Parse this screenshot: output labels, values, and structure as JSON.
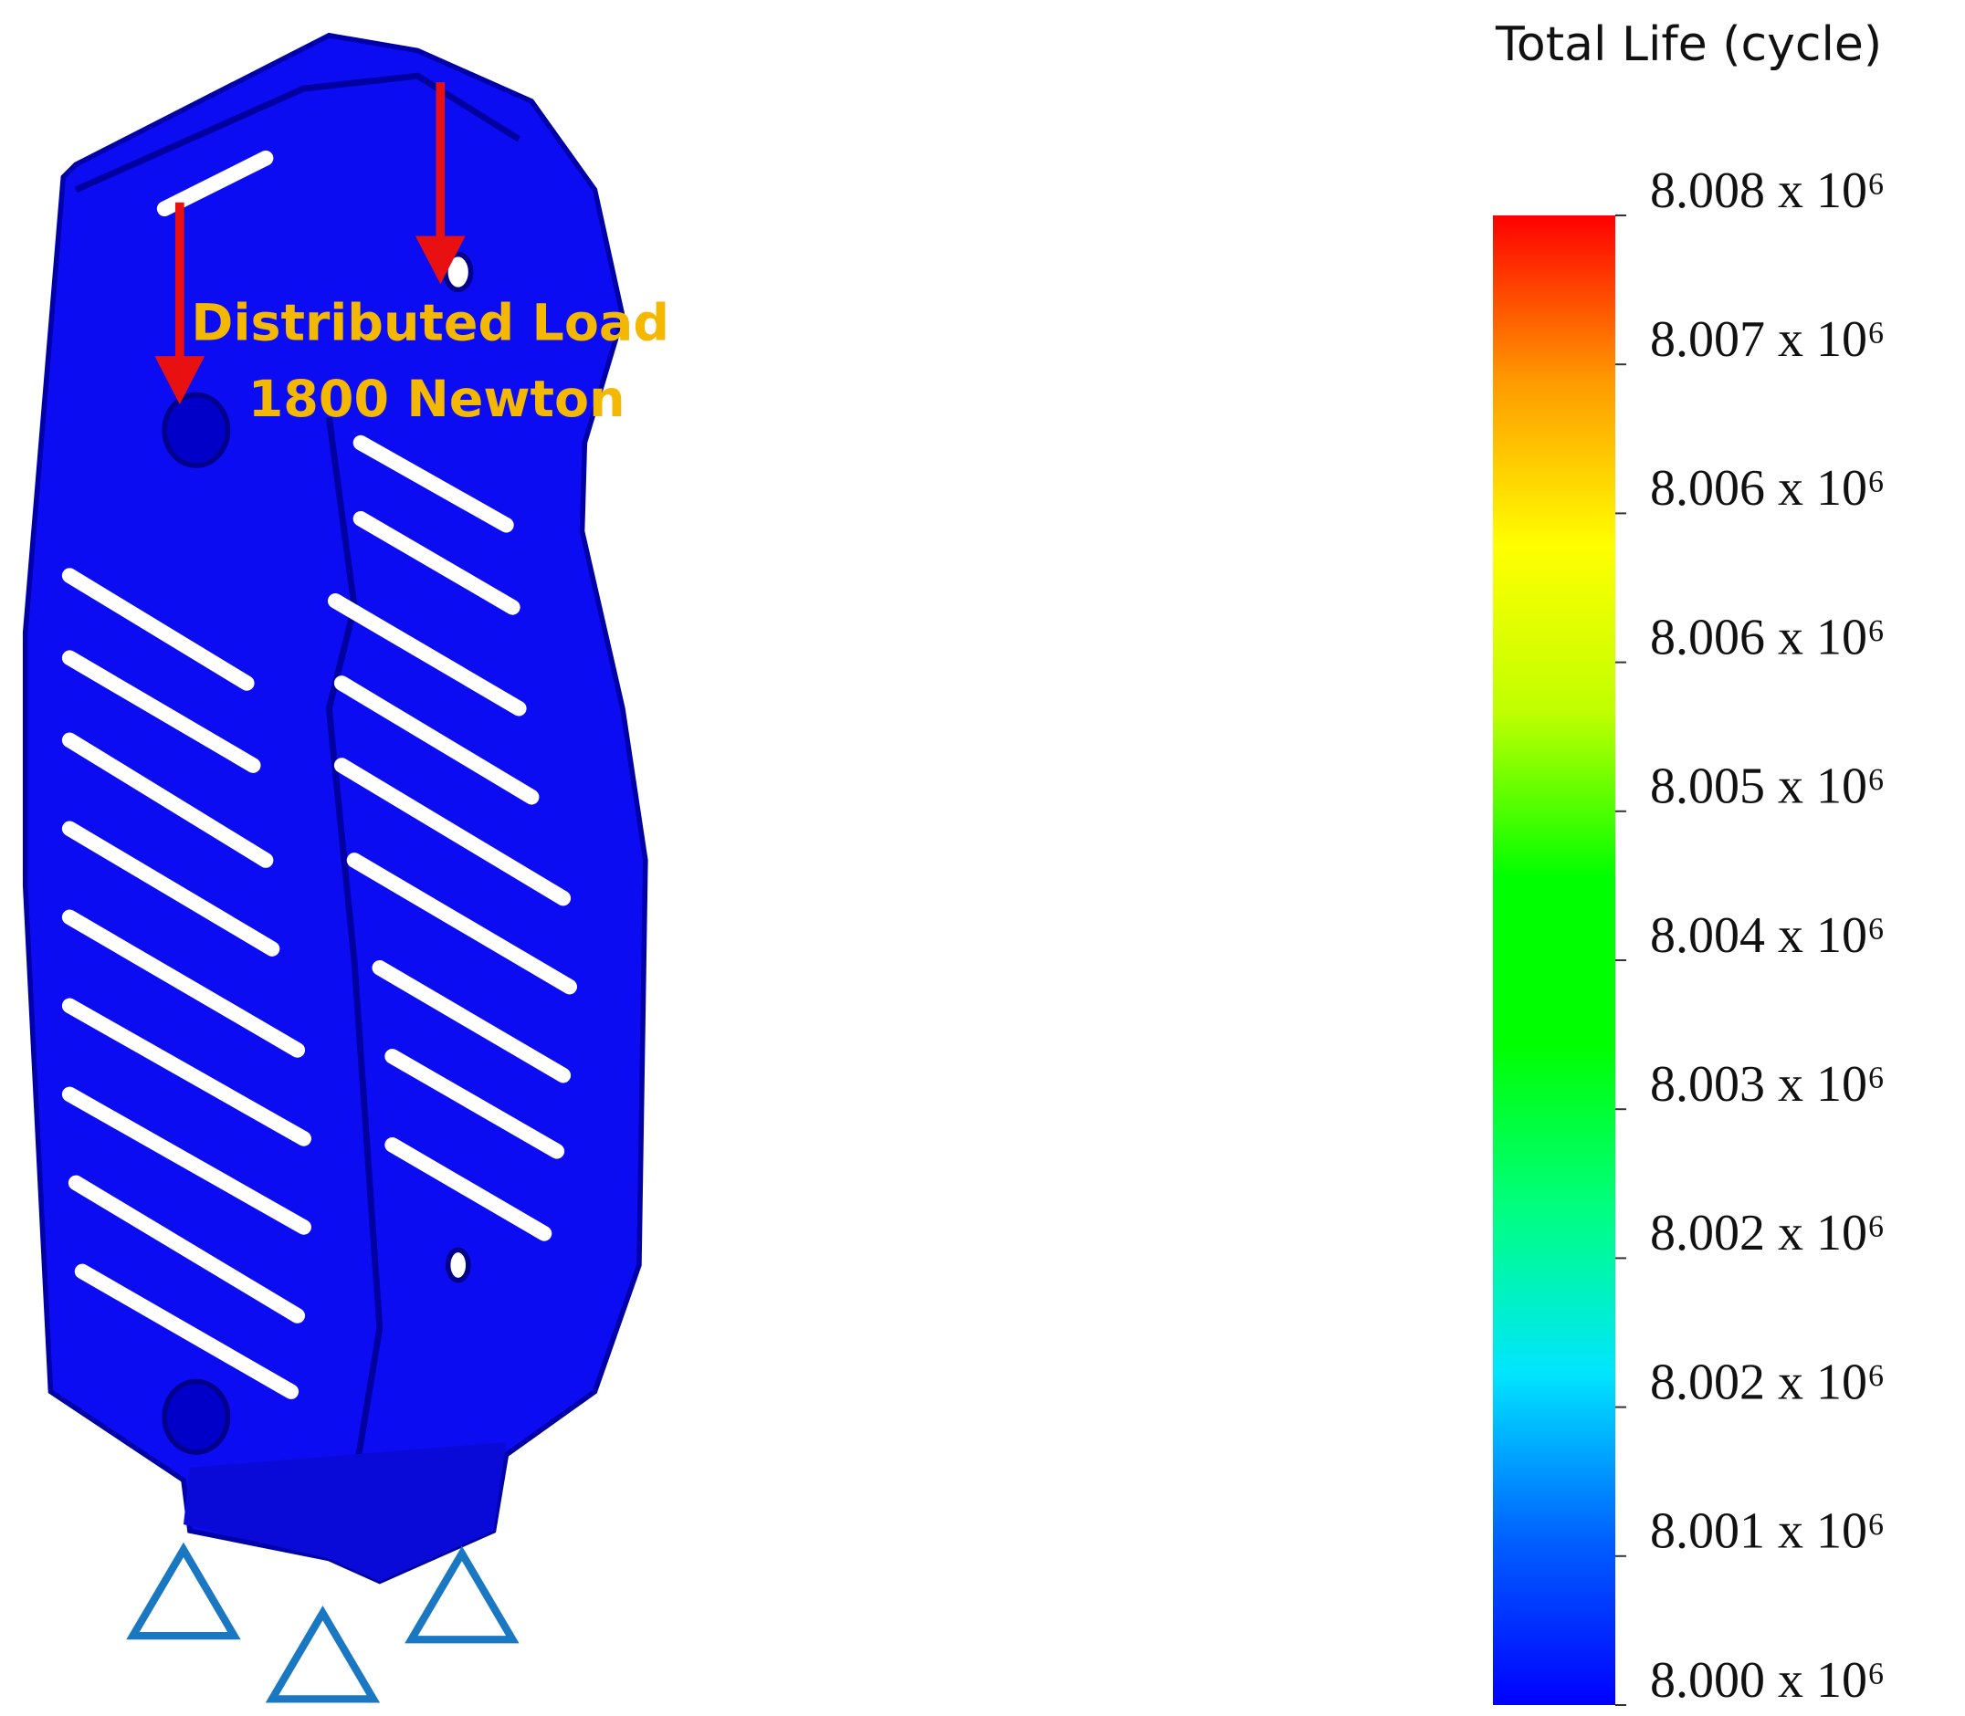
{
  "annotation": {
    "line1": "Distributed Load",
    "line2": "1800 Newton"
  },
  "colorbar": {
    "title": "Total Life (cycle)",
    "lim": [
      8000000,
      8008000
    ],
    "colors": [
      "#0000ff",
      "#0060ff",
      "#00e5ff",
      "#00ff80",
      "#00ff00",
      "#00ff00",
      "#c0ff00",
      "#ffff00",
      "#ff9a00",
      "#ff0000"
    ],
    "ticks": [
      {
        "value": 8008000,
        "label": "8.008 x 10⁶"
      },
      {
        "value": 8007200,
        "label": "8.007 x 10⁶"
      },
      {
        "value": 8006400,
        "label": "8.006 x 10⁶"
      },
      {
        "value": 8005600,
        "label": "8.006 x 10⁶"
      },
      {
        "value": 8004800,
        "label": "8.005 x 10⁶"
      },
      {
        "value": 8004000,
        "label": "8.004 x 10⁶"
      },
      {
        "value": 8003200,
        "label": "8.003 x 10⁶"
      },
      {
        "value": 8002400,
        "label": "8.002 x 10⁶"
      },
      {
        "value": 8001600,
        "label": "8.002 x 10⁶"
      },
      {
        "value": 8000800,
        "label": "8.001 x 10⁶"
      },
      {
        "value": 8000000,
        "label": "8.000 x 10⁶"
      }
    ]
  }
}
